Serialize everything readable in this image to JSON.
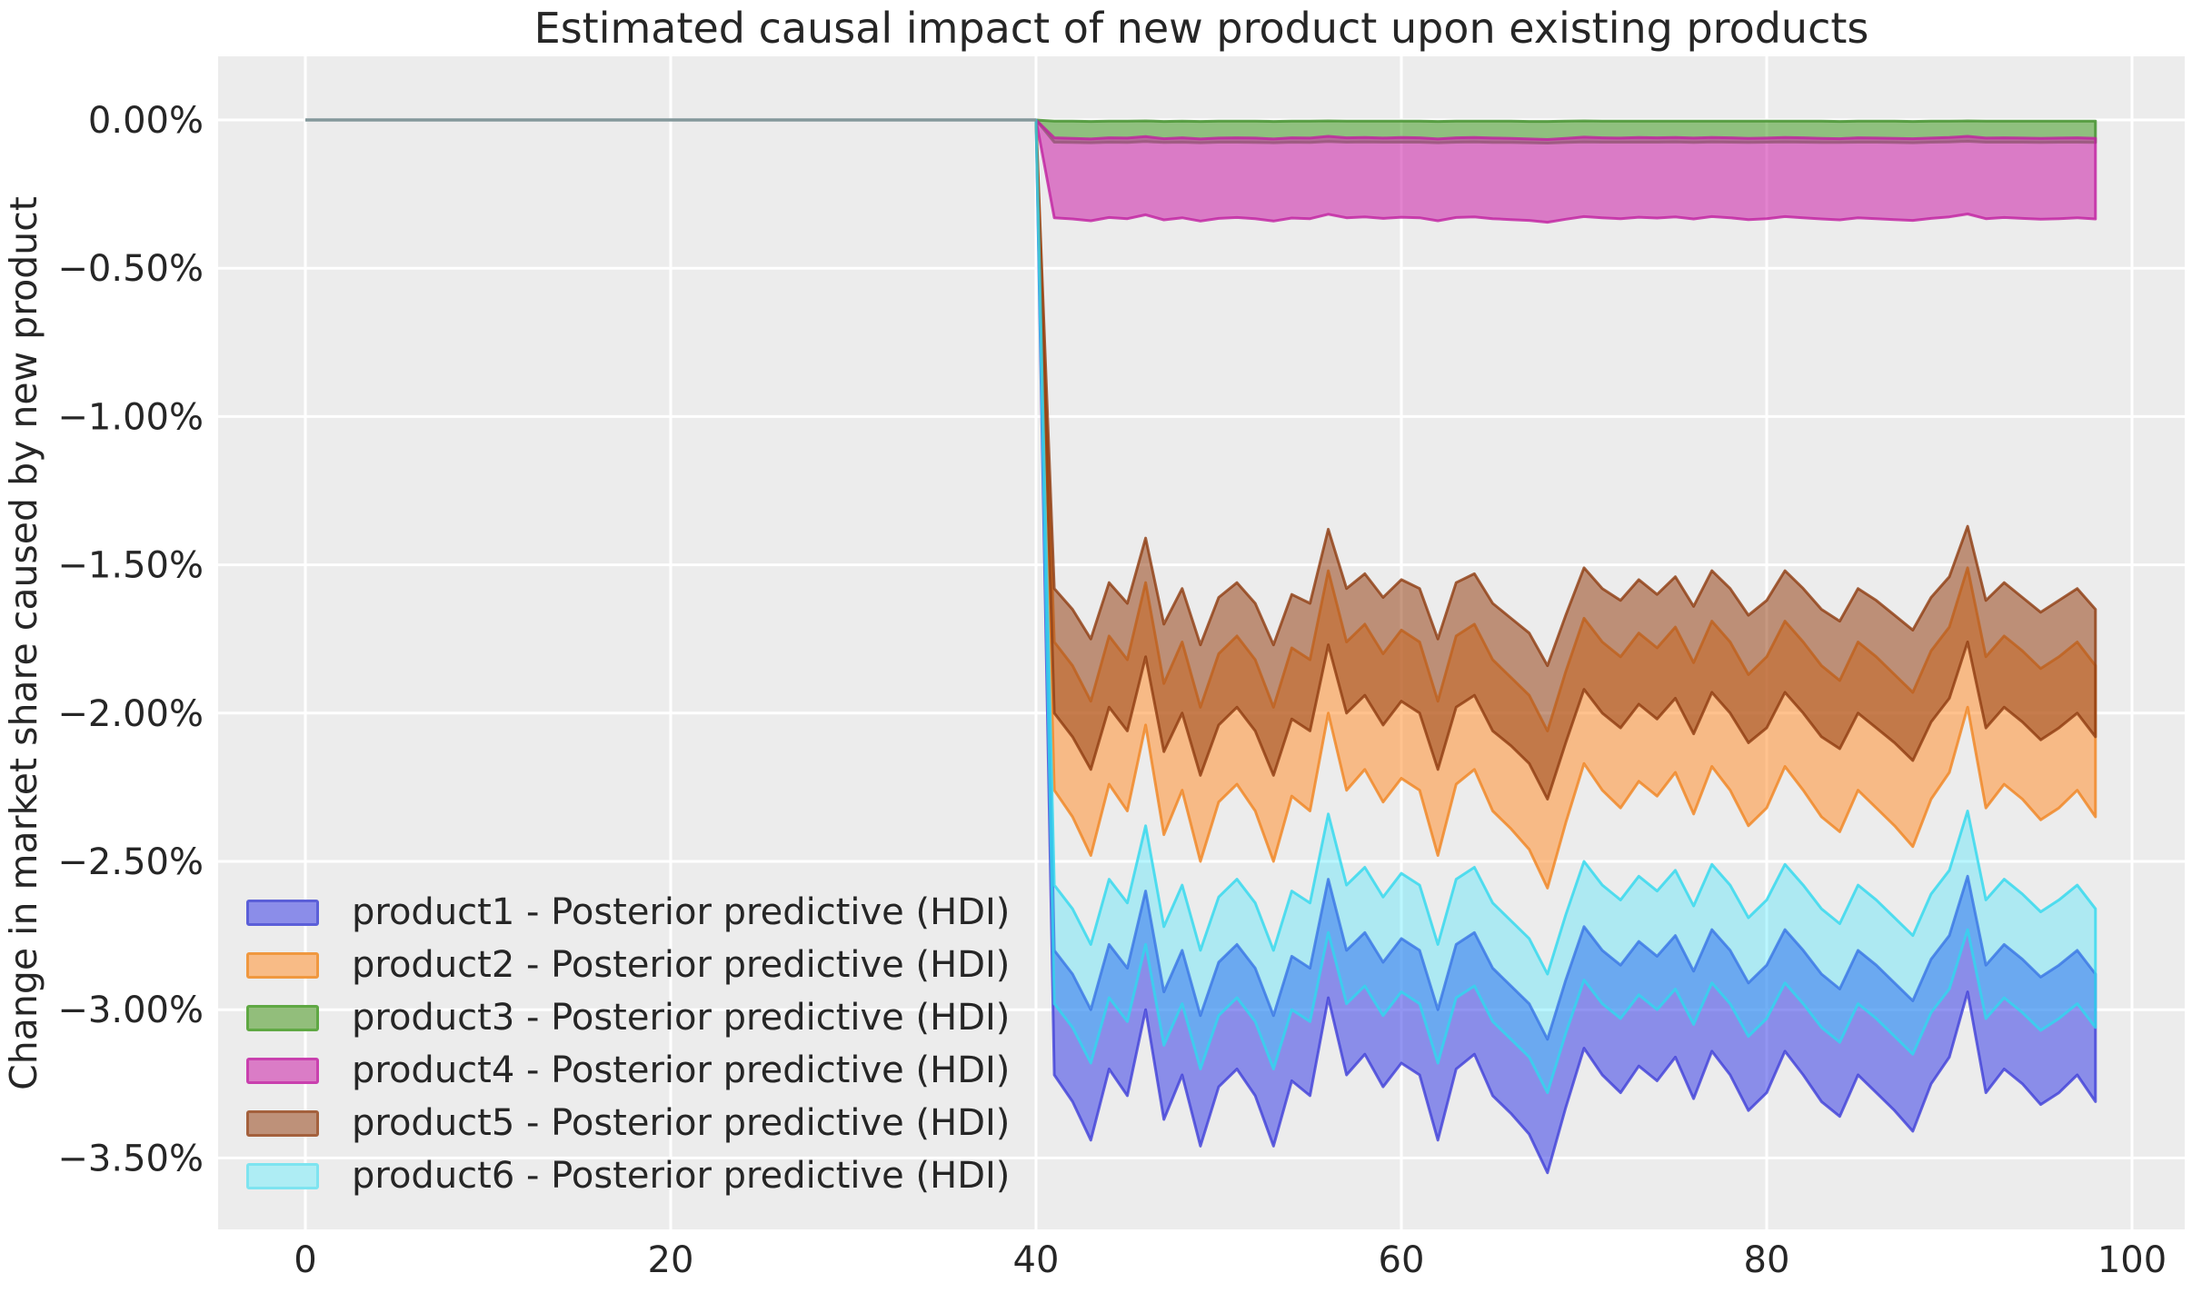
{
  "title": "Estimated causal impact of new product upon existing products",
  "style": {
    "figure_bg": "#ffffff",
    "axes_bg": "#ececec",
    "grid_color": "#ffffff",
    "text_color": "#262626",
    "pre_line_color": "#84989b"
  },
  "chart_data": {
    "type": "area",
    "title": "Estimated causal impact of new product upon existing products",
    "xlabel": "",
    "ylabel": "Change in market share caused by new product",
    "xlim": [
      -4.8,
      102.9
    ],
    "ylim_percent": [
      -3.74,
      0.21
    ],
    "grid": true,
    "legend_position": "lower left",
    "x_ticks": [
      0,
      20,
      40,
      60,
      80,
      100
    ],
    "y_ticks": [
      {
        "value": 0.0,
        "label": "0.00%"
      },
      {
        "value": -0.5,
        "label": "−0.50%"
      },
      {
        "value": -1.0,
        "label": "−1.00%"
      },
      {
        "value": -1.5,
        "label": "−1.50%"
      },
      {
        "value": -2.0,
        "label": "−2.00%"
      },
      {
        "value": -2.5,
        "label": "−2.50%"
      },
      {
        "value": -3.0,
        "label": "−3.00%"
      },
      {
        "value": -3.5,
        "label": "−3.50%"
      }
    ],
    "intervention_x": 40,
    "pre_period_line": {
      "x": [
        0,
        40
      ],
      "y_percent": [
        0,
        0
      ]
    },
    "x": [
      41,
      42,
      43,
      44,
      45,
      46,
      47,
      48,
      49,
      50,
      51,
      52,
      53,
      54,
      55,
      56,
      57,
      58,
      59,
      60,
      61,
      62,
      63,
      64,
      65,
      66,
      67,
      68,
      69,
      70,
      71,
      72,
      73,
      74,
      75,
      76,
      77,
      78,
      79,
      80,
      81,
      82,
      83,
      84,
      85,
      86,
      87,
      88,
      89,
      90,
      91,
      92,
      93,
      94,
      95,
      96,
      97,
      98
    ],
    "series": [
      {
        "name": "product1",
        "label": "product1 - Posterior predictive (HDI)",
        "line_color": "#4040d8",
        "fill_color": "#4a4ee7",
        "fill_opacity": 0.6,
        "legend_fill": "#8b8de9",
        "legend_edge": "#5b5fd8",
        "hdi_upper": [
          -2.8,
          -2.88,
          -3.0,
          -2.78,
          -2.86,
          -2.6,
          -2.94,
          -2.8,
          -3.02,
          -2.84,
          -2.78,
          -2.86,
          -3.02,
          -2.82,
          -2.86,
          -2.56,
          -2.8,
          -2.74,
          -2.84,
          -2.76,
          -2.8,
          -3.0,
          -2.78,
          -2.74,
          -2.86,
          -2.92,
          -2.98,
          -3.1,
          -2.9,
          -2.72,
          -2.8,
          -2.85,
          -2.77,
          -2.82,
          -2.75,
          -2.87,
          -2.73,
          -2.8,
          -2.91,
          -2.85,
          -2.73,
          -2.8,
          -2.88,
          -2.93,
          -2.8,
          -2.85,
          -2.91,
          -2.97,
          -2.83,
          -2.75,
          -2.55,
          -2.85,
          -2.78,
          -2.83,
          -2.89,
          -2.85,
          -2.8,
          -2.88
        ],
        "hdi_lower": [
          -3.22,
          -3.31,
          -3.44,
          -3.2,
          -3.29,
          -3.0,
          -3.37,
          -3.22,
          -3.46,
          -3.26,
          -3.2,
          -3.29,
          -3.46,
          -3.24,
          -3.29,
          -2.96,
          -3.22,
          -3.15,
          -3.26,
          -3.18,
          -3.22,
          -3.44,
          -3.2,
          -3.15,
          -3.29,
          -3.35,
          -3.42,
          -3.55,
          -3.33,
          -3.13,
          -3.22,
          -3.28,
          -3.19,
          -3.24,
          -3.16,
          -3.3,
          -3.14,
          -3.22,
          -3.34,
          -3.28,
          -3.14,
          -3.22,
          -3.31,
          -3.36,
          -3.22,
          -3.28,
          -3.34,
          -3.41,
          -3.25,
          -3.16,
          -2.94,
          -3.28,
          -3.2,
          -3.25,
          -3.32,
          -3.28,
          -3.22,
          -3.31
        ]
      },
      {
        "name": "product2",
        "label": "product2 - Posterior predictive (HDI)",
        "line_color": "#f08420",
        "fill_color": "#ff9a42",
        "fill_opacity": 0.6,
        "legend_fill": "#f8bb86",
        "legend_edge": "#f0983f",
        "hdi_upper": [
          -1.76,
          -1.84,
          -1.96,
          -1.74,
          -1.82,
          -1.56,
          -1.9,
          -1.76,
          -1.98,
          -1.8,
          -1.74,
          -1.82,
          -1.98,
          -1.78,
          -1.82,
          -1.52,
          -1.76,
          -1.7,
          -1.8,
          -1.72,
          -1.76,
          -1.96,
          -1.74,
          -1.7,
          -1.82,
          -1.88,
          -1.94,
          -2.06,
          -1.86,
          -1.68,
          -1.76,
          -1.81,
          -1.73,
          -1.78,
          -1.71,
          -1.83,
          -1.69,
          -1.76,
          -1.87,
          -1.81,
          -1.69,
          -1.76,
          -1.84,
          -1.89,
          -1.76,
          -1.81,
          -1.87,
          -1.93,
          -1.79,
          -1.71,
          -1.51,
          -1.81,
          -1.74,
          -1.79,
          -1.85,
          -1.81,
          -1.76,
          -1.84
        ],
        "hdi_lower": [
          -2.26,
          -2.35,
          -2.48,
          -2.24,
          -2.33,
          -2.04,
          -2.41,
          -2.26,
          -2.5,
          -2.3,
          -2.24,
          -2.33,
          -2.5,
          -2.28,
          -2.33,
          -2.0,
          -2.26,
          -2.19,
          -2.3,
          -2.22,
          -2.26,
          -2.48,
          -2.24,
          -2.19,
          -2.33,
          -2.39,
          -2.46,
          -2.59,
          -2.37,
          -2.17,
          -2.26,
          -2.32,
          -2.23,
          -2.28,
          -2.2,
          -2.34,
          -2.18,
          -2.26,
          -2.38,
          -2.32,
          -2.18,
          -2.26,
          -2.35,
          -2.4,
          -2.26,
          -2.32,
          -2.38,
          -2.45,
          -2.29,
          -2.2,
          -1.98,
          -2.32,
          -2.24,
          -2.29,
          -2.36,
          -2.32,
          -2.26,
          -2.35
        ]
      },
      {
        "name": "product3",
        "label": "product3 - Posterior predictive (HDI)",
        "line_color": "#3f8f28",
        "fill_color": "#52a336",
        "fill_opacity": 0.6,
        "legend_fill": "#92be7b",
        "legend_edge": "#5fa843",
        "hdi_upper": [
          -0.004,
          -0.004,
          -0.005,
          -0.004,
          -0.004,
          -0.003,
          -0.005,
          -0.004,
          -0.005,
          -0.004,
          -0.004,
          -0.004,
          -0.005,
          -0.004,
          -0.004,
          -0.003,
          -0.004,
          -0.004,
          -0.004,
          -0.004,
          -0.004,
          -0.005,
          -0.004,
          -0.004,
          -0.004,
          -0.004,
          -0.005,
          -0.005,
          -0.004,
          -0.003,
          -0.004,
          -0.004,
          -0.004,
          -0.004,
          -0.004,
          -0.004,
          -0.004,
          -0.004,
          -0.004,
          -0.004,
          -0.004,
          -0.004,
          -0.004,
          -0.005,
          -0.004,
          -0.004,
          -0.004,
          -0.005,
          -0.004,
          -0.004,
          -0.003,
          -0.004,
          -0.004,
          -0.004,
          -0.004,
          -0.004,
          -0.004,
          -0.004
        ],
        "hdi_lower": [
          -0.075,
          -0.076,
          -0.077,
          -0.075,
          -0.076,
          -0.073,
          -0.076,
          -0.075,
          -0.077,
          -0.075,
          -0.075,
          -0.076,
          -0.077,
          -0.075,
          -0.076,
          -0.073,
          -0.075,
          -0.074,
          -0.075,
          -0.075,
          -0.075,
          -0.077,
          -0.075,
          -0.074,
          -0.076,
          -0.076,
          -0.077,
          -0.078,
          -0.076,
          -0.074,
          -0.075,
          -0.075,
          -0.075,
          -0.075,
          -0.074,
          -0.076,
          -0.074,
          -0.075,
          -0.076,
          -0.075,
          -0.074,
          -0.075,
          -0.076,
          -0.076,
          -0.075,
          -0.075,
          -0.076,
          -0.077,
          -0.075,
          -0.074,
          -0.072,
          -0.075,
          -0.075,
          -0.075,
          -0.076,
          -0.075,
          -0.075,
          -0.076
        ]
      },
      {
        "name": "product4",
        "label": "product4 - Posterior predictive (HDI)",
        "line_color": "#c020a0",
        "fill_color": "#ce31ad",
        "fill_opacity": 0.6,
        "legend_fill": "#da7cc6",
        "legend_edge": "#c940ae",
        "hdi_upper": [
          -0.06,
          -0.062,
          -0.064,
          -0.06,
          -0.061,
          -0.056,
          -0.063,
          -0.06,
          -0.064,
          -0.061,
          -0.06,
          -0.061,
          -0.064,
          -0.06,
          -0.061,
          -0.055,
          -0.06,
          -0.059,
          -0.061,
          -0.059,
          -0.06,
          -0.064,
          -0.06,
          -0.059,
          -0.061,
          -0.062,
          -0.064,
          -0.066,
          -0.062,
          -0.058,
          -0.06,
          -0.061,
          -0.059,
          -0.06,
          -0.059,
          -0.061,
          -0.059,
          -0.06,
          -0.062,
          -0.061,
          -0.059,
          -0.06,
          -0.062,
          -0.063,
          -0.06,
          -0.061,
          -0.062,
          -0.063,
          -0.061,
          -0.059,
          -0.055,
          -0.061,
          -0.06,
          -0.061,
          -0.062,
          -0.061,
          -0.06,
          -0.062
        ],
        "hdi_lower": [
          -0.33,
          -0.334,
          -0.34,
          -0.329,
          -0.333,
          -0.32,
          -0.337,
          -0.33,
          -0.341,
          -0.332,
          -0.329,
          -0.333,
          -0.341,
          -0.331,
          -0.333,
          -0.318,
          -0.33,
          -0.327,
          -0.332,
          -0.328,
          -0.33,
          -0.34,
          -0.329,
          -0.327,
          -0.333,
          -0.336,
          -0.339,
          -0.345,
          -0.335,
          -0.326,
          -0.33,
          -0.333,
          -0.328,
          -0.331,
          -0.327,
          -0.334,
          -0.326,
          -0.33,
          -0.336,
          -0.333,
          -0.326,
          -0.33,
          -0.334,
          -0.337,
          -0.33,
          -0.333,
          -0.336,
          -0.339,
          -0.332,
          -0.327,
          -0.317,
          -0.333,
          -0.329,
          -0.332,
          -0.335,
          -0.333,
          -0.33,
          -0.334
        ]
      },
      {
        "name": "product5",
        "label": "product5 - Posterior predictive (HDI)",
        "line_color": "#8f3c10",
        "fill_color": "#974317",
        "fill_opacity": 0.55,
        "legend_fill": "#be9179",
        "legend_edge": "#a4613d",
        "hdi_upper": [
          -1.58,
          -1.65,
          -1.75,
          -1.56,
          -1.63,
          -1.41,
          -1.7,
          -1.58,
          -1.77,
          -1.61,
          -1.56,
          -1.63,
          -1.77,
          -1.6,
          -1.63,
          -1.38,
          -1.58,
          -1.53,
          -1.61,
          -1.55,
          -1.58,
          -1.75,
          -1.56,
          -1.53,
          -1.63,
          -1.68,
          -1.73,
          -1.84,
          -1.67,
          -1.51,
          -1.58,
          -1.62,
          -1.55,
          -1.6,
          -1.54,
          -1.64,
          -1.52,
          -1.58,
          -1.67,
          -1.62,
          -1.52,
          -1.58,
          -1.65,
          -1.69,
          -1.58,
          -1.62,
          -1.67,
          -1.72,
          -1.61,
          -1.54,
          -1.37,
          -1.62,
          -1.56,
          -1.61,
          -1.66,
          -1.62,
          -1.58,
          -1.65
        ],
        "hdi_lower": [
          -2.0,
          -2.08,
          -2.19,
          -1.98,
          -2.06,
          -1.81,
          -2.13,
          -2.0,
          -2.21,
          -2.04,
          -1.98,
          -2.06,
          -2.21,
          -2.02,
          -2.06,
          -1.77,
          -2.0,
          -1.94,
          -2.04,
          -1.96,
          -2.0,
          -2.19,
          -1.98,
          -1.94,
          -2.06,
          -2.11,
          -2.17,
          -2.29,
          -2.1,
          -1.92,
          -2.0,
          -2.05,
          -1.97,
          -2.02,
          -1.95,
          -2.07,
          -1.93,
          -2.0,
          -2.1,
          -2.05,
          -1.93,
          -2.0,
          -2.08,
          -2.12,
          -2.0,
          -2.05,
          -2.1,
          -2.16,
          -2.03,
          -1.95,
          -1.76,
          -2.05,
          -1.98,
          -2.03,
          -2.09,
          -2.05,
          -2.0,
          -2.08
        ]
      },
      {
        "name": "product6",
        "label": "product6 - Posterior predictive (HDI)",
        "line_color": "#30d8ee",
        "fill_color": "#2fe3ff",
        "fill_opacity": 0.33,
        "legend_fill": "#aeedf4",
        "legend_edge": "#7ee4f0",
        "hdi_upper": [
          -2.58,
          -2.66,
          -2.78,
          -2.56,
          -2.64,
          -2.38,
          -2.72,
          -2.58,
          -2.8,
          -2.62,
          -2.56,
          -2.64,
          -2.8,
          -2.6,
          -2.64,
          -2.34,
          -2.58,
          -2.52,
          -2.62,
          -2.54,
          -2.58,
          -2.78,
          -2.56,
          -2.52,
          -2.64,
          -2.7,
          -2.76,
          -2.88,
          -2.68,
          -2.5,
          -2.58,
          -2.63,
          -2.55,
          -2.6,
          -2.53,
          -2.65,
          -2.51,
          -2.58,
          -2.69,
          -2.63,
          -2.51,
          -2.58,
          -2.66,
          -2.71,
          -2.58,
          -2.63,
          -2.69,
          -2.75,
          -2.61,
          -2.53,
          -2.33,
          -2.63,
          -2.56,
          -2.61,
          -2.67,
          -2.63,
          -2.58,
          -2.66
        ],
        "hdi_lower": [
          -2.98,
          -3.06,
          -3.18,
          -2.96,
          -3.04,
          -2.78,
          -3.12,
          -2.98,
          -3.2,
          -3.02,
          -2.96,
          -3.04,
          -3.2,
          -3.0,
          -3.04,
          -2.74,
          -2.98,
          -2.92,
          -3.02,
          -2.94,
          -2.98,
          -3.18,
          -2.96,
          -2.92,
          -3.04,
          -3.1,
          -3.16,
          -3.28,
          -3.08,
          -2.9,
          -2.98,
          -3.03,
          -2.95,
          -3.0,
          -2.93,
          -3.05,
          -2.91,
          -2.98,
          -3.09,
          -3.03,
          -2.91,
          -2.98,
          -3.06,
          -3.11,
          -2.98,
          -3.03,
          -3.09,
          -3.15,
          -3.01,
          -2.93,
          -2.73,
          -3.03,
          -2.96,
          -3.01,
          -3.07,
          -3.03,
          -2.98,
          -3.06
        ]
      }
    ]
  }
}
